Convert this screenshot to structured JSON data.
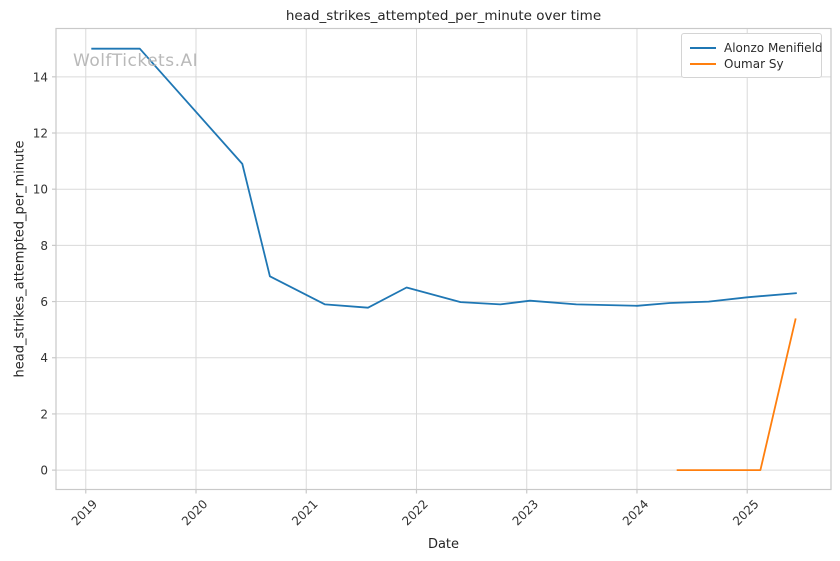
{
  "watermark": "WolfTickets.AI",
  "colors": {
    "series_blue": "#1f77b4",
    "series_orange": "#ff7f0e",
    "grid": "#dadada",
    "spine": "#c9c9c9",
    "title_text": "#262626",
    "tick_text": "#333333",
    "watermark_text": "#b9b9b9"
  },
  "chart_data": {
    "type": "line",
    "title": "head_strikes_attempted_per_minute over time",
    "xlabel": "Date",
    "ylabel": "head_strikes_attempted_per_minute",
    "grid": true,
    "legend_position": "upper right",
    "x_domain": [
      2018.73,
      2025.76
    ],
    "y_domain": [
      -0.69,
      15.72
    ],
    "x_ticks": [
      2019,
      2020,
      2021,
      2022,
      2023,
      2024,
      2025
    ],
    "x_tick_labels": [
      "2019",
      "2020",
      "2021",
      "2022",
      "2023",
      "2024",
      "2025"
    ],
    "y_ticks": [
      0,
      2,
      4,
      6,
      8,
      10,
      12,
      14
    ],
    "y_tick_labels": [
      "0",
      "2",
      "4",
      "6",
      "8",
      "10",
      "12",
      "14"
    ],
    "series": [
      {
        "name": "Alonzo Menifield",
        "color": "#1f77b4",
        "points": [
          [
            2019.05,
            15.0
          ],
          [
            2019.49,
            15.0
          ],
          [
            2020.42,
            10.9
          ],
          [
            2020.67,
            6.9
          ],
          [
            2021.17,
            5.9
          ],
          [
            2021.56,
            5.78
          ],
          [
            2021.91,
            6.5
          ],
          [
            2022.4,
            5.98
          ],
          [
            2022.76,
            5.9
          ],
          [
            2023.03,
            6.03
          ],
          [
            2023.45,
            5.9
          ],
          [
            2024.0,
            5.85
          ],
          [
            2024.3,
            5.95
          ],
          [
            2024.65,
            6.0
          ],
          [
            2025.0,
            6.15
          ],
          [
            2025.45,
            6.3
          ]
        ]
      },
      {
        "name": "Oumar Sy",
        "color": "#ff7f0e",
        "points": [
          [
            2024.36,
            0.0
          ],
          [
            2024.75,
            0.0
          ],
          [
            2025.12,
            0.0
          ],
          [
            2025.44,
            5.4
          ]
        ]
      }
    ]
  }
}
